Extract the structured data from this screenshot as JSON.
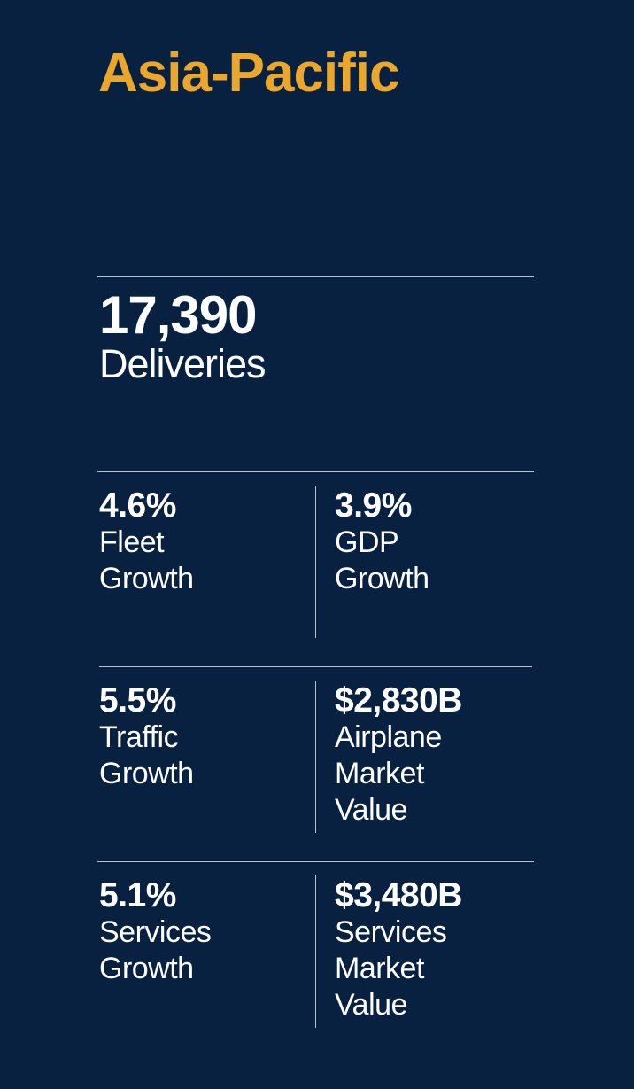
{
  "region": {
    "title": "Asia-Pacific"
  },
  "headline": {
    "value": "17,390",
    "label": "Deliveries"
  },
  "stats": [
    {
      "value": "4.6%",
      "label": "Fleet\nGrowth"
    },
    {
      "value": "3.9%",
      "label": "GDP\nGrowth"
    },
    {
      "value": "5.5%",
      "label": "Traffic\nGrowth"
    },
    {
      "value": "$2,830B",
      "label": "Airplane\nMarket\nValue"
    },
    {
      "value": "5.1%",
      "label": "Services\nGrowth"
    },
    {
      "value": "$3,480B",
      "label": "Services\nMarket\nValue"
    }
  ],
  "colors": {
    "background": "#082140",
    "accent": "#eba72b",
    "text": "#ffffff",
    "rule": "#b8c0cc"
  }
}
